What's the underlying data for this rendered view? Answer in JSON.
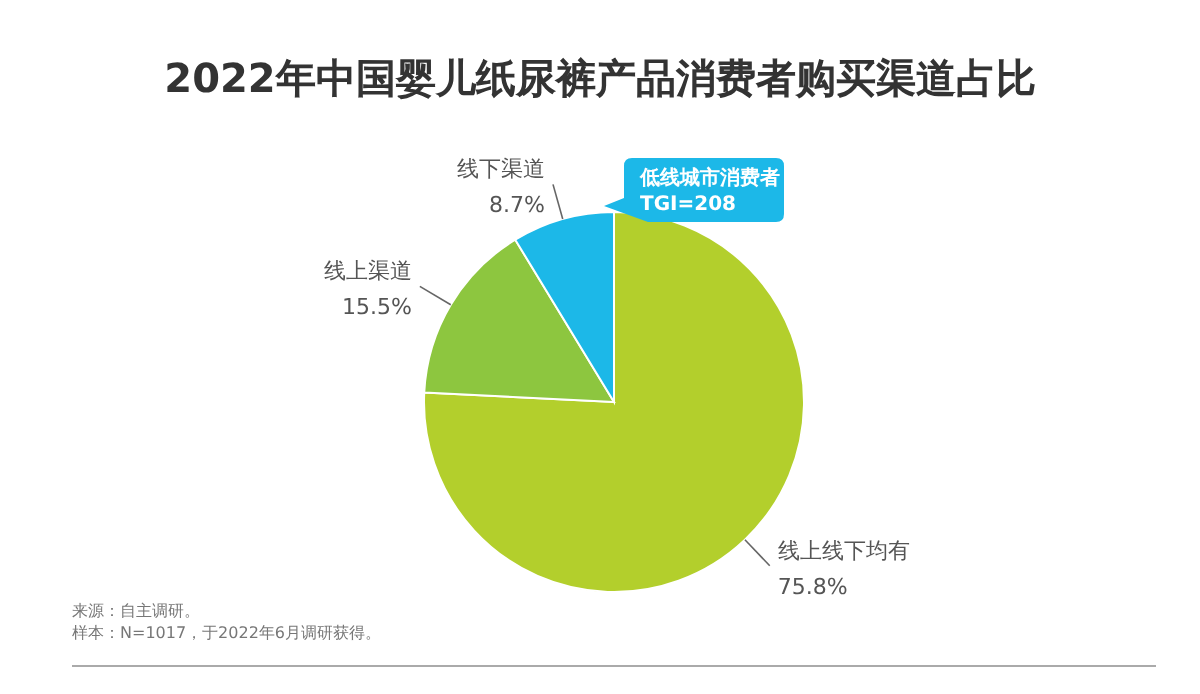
{
  "chart_data": {
    "type": "pie",
    "title": "2022年中国婴儿纸尿裤产品消费者购买渠道占比",
    "categories": [
      "线上线下均有",
      "线上渠道",
      "线下渠道"
    ],
    "values": [
      75.8,
      15.5,
      8.7
    ],
    "colors": [
      "#b3cf2c",
      "#8dc63f",
      "#1cb8e8"
    ],
    "value_labels": [
      "75.8%",
      "15.5%",
      "8.7%"
    ],
    "annotations": [
      "低线城市消费者",
      "TGI=208",
      "来源：自主调研。",
      "样本：N=1017，于2022年6月调研获得。"
    ]
  }
}
